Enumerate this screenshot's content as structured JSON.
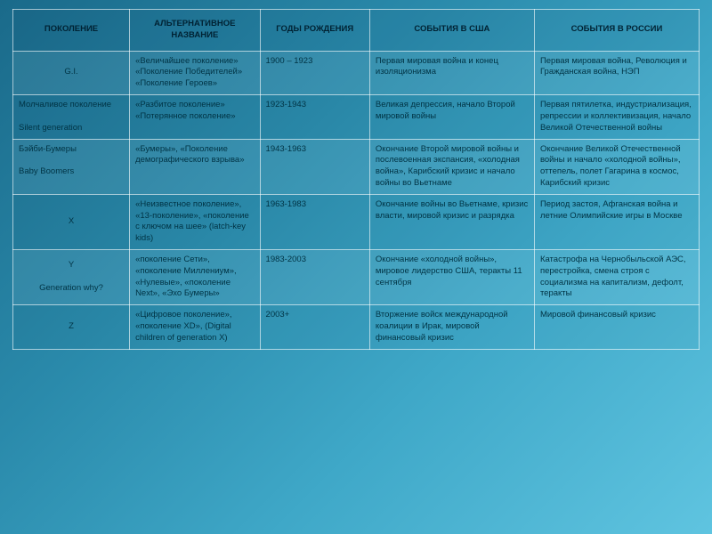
{
  "table": {
    "columns": [
      "ПОКОЛЕНИЕ",
      "АЛЬТЕРНАТИВНОЕ НАЗВАНИЕ",
      "ГОДЫ РОЖДЕНИЯ",
      "СОБЫТИЯ В США",
      "СОБЫТИЯ В РОССИИ"
    ],
    "rows": [
      {
        "generation": "G.I.",
        "alt_name": "«Величайшее поколение» «Поколение Победителей» «Поколение Героев»",
        "years": "1900 – 1923",
        "usa": "Первая мировая война и конец изоляционизма",
        "russia": "Первая мировая война, Революция и Гражданская война, НЭП"
      },
      {
        "generation": "Молчаливое поколение\n\nSilent generation",
        "alt_name": "«Разбитое поколение» «Потерянное поколение»",
        "years": "1923-1943",
        "usa": "Великая депрессия, начало Второй мировой войны",
        "russia": "Первая пятилетка, индустриализация, репрессии и коллективизация, начало Великой Отечественной войны"
      },
      {
        "generation": "Бэйби-Бумеры\n\nBaby Boomers",
        "alt_name": "«Бумеры», «Поколение демографического взрыва»",
        "years": "1943-1963",
        "usa": "Окончание Второй мировой войны и послевоенная экспансия, «холодная война», Карибский кризис и начало войны во Вьетнаме",
        "russia": "Окончание Великой Отечественной войны и начало «холодной войны», оттепель, полет Гагарина в космос, Карибский кризис"
      },
      {
        "generation": "X",
        "alt_name": "«Неизвестное поколение», «13-поколение», «поколение с ключом на шее» (latch-key kids)",
        "years": "1963-1983",
        "usa": "Окончание войны во Вьетнаме, кризис власти, мировой кризис и разрядка",
        "russia": "Период застоя, Афганская война и летние Олимпийские игры в Москве"
      },
      {
        "generation": "Y\n\nGeneration why?",
        "alt_name": "«поколение Сети», «поколение Миллениум», «Нулевые», «поколение Next», «Эхо Бумеры»",
        "years": "1983-2003",
        "usa": "Окончание «холодной войны», мировое лидерство США, теракты 11 сентября",
        "russia": "Катастрофа на Чернобыльской АЭС, перестройка, смена строя с социализма на капитализм, дефолт, теракты"
      },
      {
        "generation": "Z",
        "alt_name": "«Цифровое поколение», «поколение XD», (Digital children of generation X)",
        "years": "2003+",
        "usa": "Вторжение войск международной коалиции в Ирак, мировой финансовый кризис",
        "russia": "Мировой финансовый кризис"
      }
    ],
    "style": {
      "background_gradient": [
        "#1a6a8a",
        "#2a8aab",
        "#3fa8c8",
        "#5fc4e0"
      ],
      "border_color": "rgba(255,255,255,0.6)",
      "header_text_color": "#002233",
      "body_text_color": "#003344",
      "font_family": "Arial",
      "font_size_pt": 7,
      "row_alt_bg": "rgba(255,255,255,0.07)",
      "column_widths_pct": [
        17,
        19,
        16,
        24,
        24
      ]
    }
  }
}
